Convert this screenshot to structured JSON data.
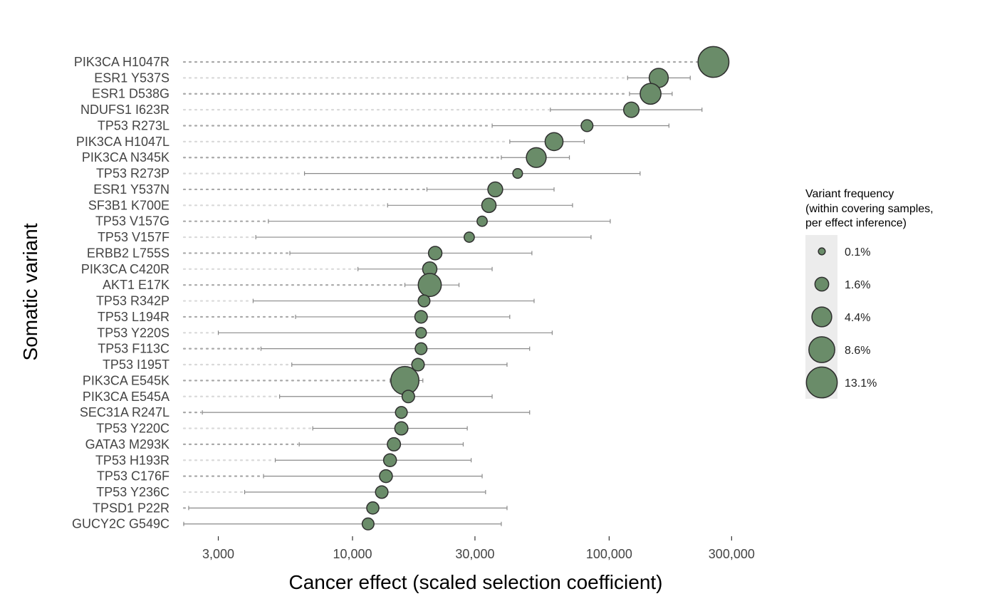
{
  "chart_data": {
    "type": "scatter",
    "xlabel": "Cancer effect (scaled selection coefficient)",
    "ylabel": "Somatic variant",
    "x_scale": "log",
    "xlim": [
      2200,
      420000
    ],
    "x_ticks": [
      3000,
      10000,
      30000,
      100000,
      300000
    ],
    "x_tick_labels": [
      "3,000",
      "10,000",
      "30,000",
      "100,000",
      "300,000"
    ],
    "grid": false,
    "point_color": "#6a8c69",
    "legend": {
      "title_lines": [
        "Variant frequency",
        "(within covering samples,",
        "per effect inference)"
      ],
      "placement": "right",
      "entries": [
        {
          "label": "0.1%",
          "freq": 0.1
        },
        {
          "label": "1.6%",
          "freq": 1.6
        },
        {
          "label": "4.4%",
          "freq": 4.4
        },
        {
          "label": "8.6%",
          "freq": 8.6
        },
        {
          "label": "13.1%",
          "freq": 13.1
        }
      ]
    },
    "variants": [
      {
        "name": "PIK3CA H1047R",
        "effect": 255000,
        "ci_low": 240000,
        "ci_high": 272000,
        "freq": 13.1
      },
      {
        "name": "ESR1 Y537S",
        "effect": 156000,
        "ci_low": 118000,
        "ci_high": 207000,
        "freq": 4.0
      },
      {
        "name": "ESR1 D538G",
        "effect": 145000,
        "ci_low": 120000,
        "ci_high": 176000,
        "freq": 5.0
      },
      {
        "name": "NDUFS1 I623R",
        "effect": 122000,
        "ci_low": 59000,
        "ci_high": 230000,
        "freq": 2.2
      },
      {
        "name": "TP53 R273L",
        "effect": 82000,
        "ci_low": 35000,
        "ci_high": 171000,
        "freq": 1.0
      },
      {
        "name": "PIK3CA H1047L",
        "effect": 61000,
        "ci_low": 41000,
        "ci_high": 80000,
        "freq": 3.4
      },
      {
        "name": "PIK3CA N345K",
        "effect": 52000,
        "ci_low": 38000,
        "ci_high": 70000,
        "freq": 4.4
      },
      {
        "name": "TP53 R273P",
        "effect": 44000,
        "ci_low": 6500,
        "ci_high": 132000,
        "freq": 0.5
      },
      {
        "name": "ESR1 Y537N",
        "effect": 36000,
        "ci_low": 19500,
        "ci_high": 61000,
        "freq": 2.0
      },
      {
        "name": "SF3B1 K700E",
        "effect": 34000,
        "ci_low": 13700,
        "ci_high": 72000,
        "freq": 1.8
      },
      {
        "name": "TP53 V157G",
        "effect": 32000,
        "ci_low": 4700,
        "ci_high": 101000,
        "freq": 0.6
      },
      {
        "name": "TP53 V157F",
        "effect": 28500,
        "ci_low": 4200,
        "ci_high": 85000,
        "freq": 0.6
      },
      {
        "name": "ERBB2 L755S",
        "effect": 21000,
        "ci_low": 5700,
        "ci_high": 50000,
        "freq": 1.5
      },
      {
        "name": "PIK3CA C420R",
        "effect": 20000,
        "ci_low": 10500,
        "ci_high": 35000,
        "freq": 1.8
      },
      {
        "name": "AKT1 E17K",
        "effect": 20000,
        "ci_low": 16000,
        "ci_high": 26000,
        "freq": 6.5
      },
      {
        "name": "TP53 R342P",
        "effect": 19000,
        "ci_low": 4100,
        "ci_high": 51000,
        "freq": 1.0
      },
      {
        "name": "TP53 L194R",
        "effect": 18500,
        "ci_low": 6000,
        "ci_high": 41000,
        "freq": 1.2
      },
      {
        "name": "TP53 Y220S",
        "effect": 18500,
        "ci_low": 3000,
        "ci_high": 60000,
        "freq": 0.7
      },
      {
        "name": "TP53 F113C",
        "effect": 18500,
        "ci_low": 4400,
        "ci_high": 49000,
        "freq": 1.0
      },
      {
        "name": "TP53 I195T",
        "effect": 18000,
        "ci_low": 5800,
        "ci_high": 40000,
        "freq": 1.2
      },
      {
        "name": "PIK3CA E545K",
        "effect": 16000,
        "ci_low": 14000,
        "ci_high": 18800,
        "freq": 10.5
      },
      {
        "name": "PIK3CA E545A",
        "effect": 16500,
        "ci_low": 5200,
        "ci_high": 35000,
        "freq": 1.2
      },
      {
        "name": "SEC31A R247L",
        "effect": 15500,
        "ci_low": 2600,
        "ci_high": 49000,
        "freq": 1.0
      },
      {
        "name": "TP53 Y220C",
        "effect": 15500,
        "ci_low": 7000,
        "ci_high": 28000,
        "freq": 1.4
      },
      {
        "name": "GATA3 M293K",
        "effect": 14500,
        "ci_low": 6200,
        "ci_high": 27000,
        "freq": 1.4
      },
      {
        "name": "TP53 H193R",
        "effect": 14000,
        "ci_low": 5000,
        "ci_high": 29000,
        "freq": 1.3
      },
      {
        "name": "TP53 C176F",
        "effect": 13500,
        "ci_low": 4500,
        "ci_high": 32000,
        "freq": 1.3
      },
      {
        "name": "TP53 Y236C",
        "effect": 13000,
        "ci_low": 3800,
        "ci_high": 33000,
        "freq": 1.2
      },
      {
        "name": "TPSD1 P22R",
        "effect": 12000,
        "ci_low": 2300,
        "ci_high": 40000,
        "freq": 1.1
      },
      {
        "name": "GUCY2C G549C",
        "effect": 11500,
        "ci_low": 2200,
        "ci_high": 38000,
        "freq": 1.0
      }
    ]
  }
}
